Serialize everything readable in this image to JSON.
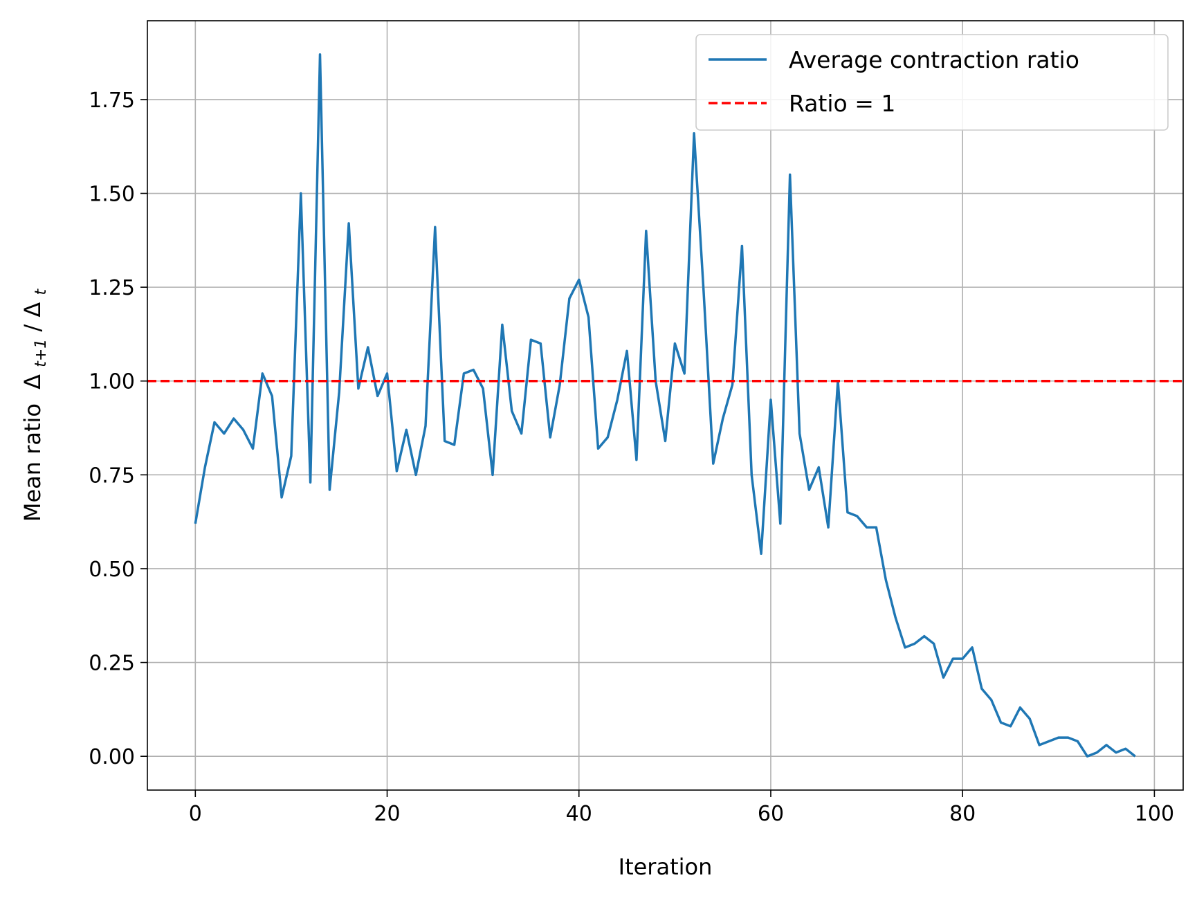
{
  "chart_data": {
    "type": "line",
    "title": "",
    "xlabel": "Iteration",
    "ylabel": "Mean ratio",
    "ylabel_math": {
      "symbol": "Δ",
      "sub_num": "t+1",
      "sep": "/",
      "sub_den": "t"
    },
    "xlim": [
      -5,
      103
    ],
    "ylim": [
      -0.09,
      1.96
    ],
    "xticks": [
      0,
      20,
      40,
      60,
      80,
      100
    ],
    "xtick_labels": [
      "0",
      "20",
      "40",
      "60",
      "80",
      "100"
    ],
    "yticks": [
      0.0,
      0.25,
      0.5,
      0.75,
      1.0,
      1.25,
      1.5,
      1.75
    ],
    "ytick_labels": [
      "0.00",
      "0.25",
      "0.50",
      "0.75",
      "1.00",
      "1.25",
      "1.50",
      "1.75"
    ],
    "grid": true,
    "legend_position": "top-right",
    "series": [
      {
        "name": "Average contraction ratio",
        "color": "#1f77b4",
        "style": "solid",
        "x": [
          0,
          1,
          2,
          3,
          4,
          5,
          6,
          7,
          8,
          9,
          10,
          11,
          12,
          13,
          14,
          15,
          16,
          17,
          18,
          19,
          20,
          21,
          22,
          23,
          24,
          25,
          26,
          27,
          28,
          29,
          30,
          31,
          32,
          33,
          34,
          35,
          36,
          37,
          38,
          39,
          40,
          41,
          42,
          43,
          44,
          45,
          46,
          47,
          48,
          49,
          50,
          51,
          52,
          53,
          54,
          55,
          56,
          57,
          58,
          59,
          60,
          61,
          62,
          63,
          64,
          65,
          66,
          67,
          68,
          69,
          70,
          71,
          72,
          73,
          74,
          75,
          76,
          77,
          78,
          79,
          80,
          81,
          82,
          83,
          84,
          85,
          86,
          87,
          88,
          89,
          90,
          91,
          92,
          93,
          94,
          95,
          96,
          97,
          98
        ],
        "y": [
          0.62,
          0.77,
          0.89,
          0.86,
          0.9,
          0.87,
          0.82,
          1.02,
          0.96,
          0.69,
          0.8,
          1.5,
          0.73,
          1.87,
          0.71,
          0.97,
          1.42,
          0.98,
          1.09,
          0.96,
          1.02,
          0.76,
          0.87,
          0.75,
          0.88,
          1.41,
          0.84,
          0.83,
          1.02,
          1.03,
          0.98,
          0.75,
          1.15,
          0.92,
          0.86,
          1.11,
          1.1,
          0.85,
          0.99,
          1.22,
          1.27,
          1.17,
          0.82,
          0.85,
          0.95,
          1.08,
          0.79,
          1.4,
          1.0,
          0.84,
          1.1,
          1.02,
          1.66,
          1.24,
          0.78,
          0.9,
          0.99,
          1.36,
          0.75,
          0.54,
          0.95,
          0.62,
          1.55,
          0.86,
          0.71,
          0.77,
          0.61,
          1.0,
          0.65,
          0.64,
          0.61,
          0.61,
          0.47,
          0.37,
          0.29,
          0.3,
          0.32,
          0.3,
          0.21,
          0.26,
          0.26,
          0.29,
          0.18,
          0.15,
          0.09,
          0.08,
          0.13,
          0.1,
          0.03,
          0.04,
          0.05,
          0.05,
          0.04,
          0.0,
          0.01,
          0.03,
          0.01,
          0.02,
          0.0
        ]
      },
      {
        "name": "Ratio = 1",
        "color": "#ff0000",
        "style": "dashed",
        "y_constant": 1.0
      }
    ]
  }
}
